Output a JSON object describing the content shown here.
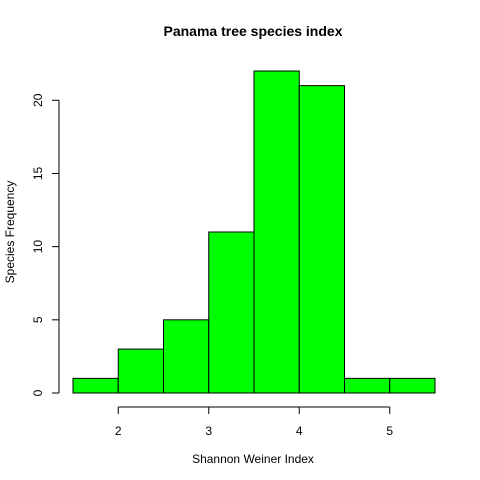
{
  "chart_data": {
    "type": "bar",
    "title": "Panama tree species index",
    "xlabel": "Shannon Weiner Index",
    "ylabel": "Species Frequency",
    "bin_edges": [
      1.5,
      2.0,
      2.5,
      3.0,
      3.5,
      4.0,
      4.5,
      5.0,
      5.5
    ],
    "values": [
      1,
      3,
      5,
      11,
      22,
      21,
      1,
      1
    ],
    "xlim": [
      1.5,
      5.5
    ],
    "ylim": [
      0,
      22
    ],
    "x_ticks": [
      2,
      3,
      4,
      5
    ],
    "y_ticks": [
      0,
      5,
      10,
      15,
      20
    ],
    "bar_color": "#00ff00",
    "border_color": "#000000",
    "grid": false,
    "legend": "none"
  }
}
